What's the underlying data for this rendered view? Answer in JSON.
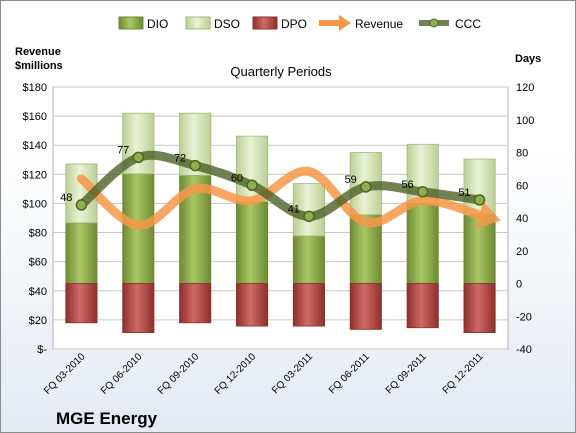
{
  "chart_data": {
    "type": "bar",
    "title": "Quarterly Periods",
    "company": "MGE Energy",
    "left_axis_label_line1": "Revenue",
    "left_axis_label_line2": "$millions",
    "right_axis_label": "Days",
    "categories": [
      "FQ 03-2010",
      "FQ 06-2010",
      "FQ 09-2010",
      "FQ 12-2010",
      "FQ 03-2011",
      "FQ 06-2011",
      "FQ 09-2011",
      "FQ 12-2011"
    ],
    "left_axis": {
      "min": 0,
      "max": 180,
      "step": 20,
      "tick_labels": [
        "$-",
        "$20",
        "$40",
        "$60",
        "$80",
        "$100",
        "$120",
        "$140",
        "$160",
        "$180"
      ]
    },
    "right_axis": {
      "min": -40,
      "max": 120,
      "step": 20
    },
    "series": [
      {
        "name": "DIO",
        "kind": "bar",
        "axis": "right",
        "color": "#9bbb59",
        "values": [
          37,
          67,
          66,
          50,
          29,
          42,
          49,
          42
        ]
      },
      {
        "name": "DSO",
        "kind": "bar",
        "axis": "right",
        "color": "#d7e4bd",
        "values": [
          36,
          37,
          38,
          40,
          32,
          38,
          36,
          34
        ]
      },
      {
        "name": "DPO",
        "kind": "bar",
        "axis": "right",
        "color": "#c0504d",
        "values": [
          -24,
          -30,
          -24,
          -26,
          -26,
          -28,
          -27,
          -30
        ]
      },
      {
        "name": "Revenue",
        "kind": "line",
        "axis": "left",
        "color": "#f79646",
        "values": [
          117,
          85,
          110,
          102,
          122,
          87,
          102,
          92
        ]
      },
      {
        "name": "CCC",
        "kind": "line",
        "axis": "right",
        "color": "#4f6228",
        "values": [
          48,
          77,
          72,
          60,
          41,
          59,
          56,
          51
        ],
        "data_labels": [
          "48",
          "77",
          "72",
          "60",
          "41",
          "59",
          "56",
          "51"
        ]
      }
    ],
    "legend_position": "top",
    "grid": true
  }
}
